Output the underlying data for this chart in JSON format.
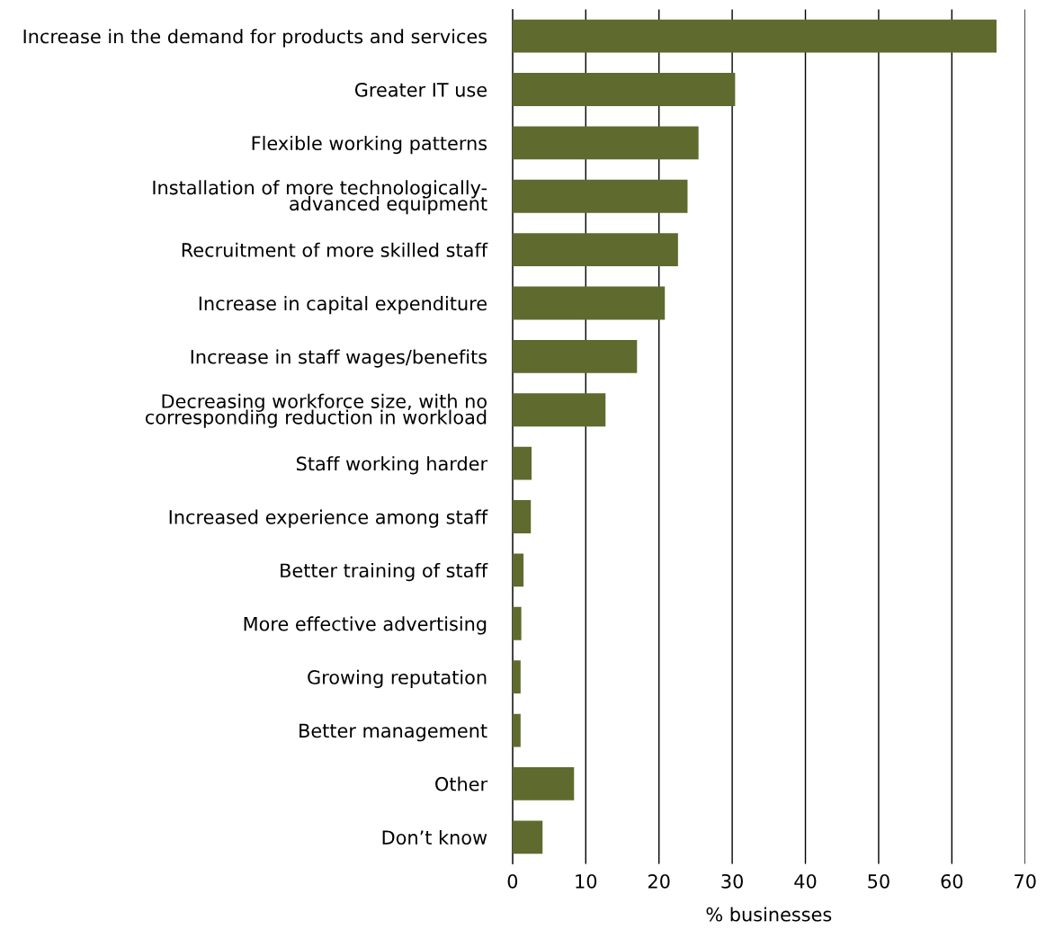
{
  "chart_data": {
    "type": "bar",
    "orientation": "horizontal",
    "xlabel": "% businesses",
    "categories": [
      "Increase in the demand for products and services",
      "Greater IT use",
      "Flexible working patterns",
      "Installation of more technologically-\nadvanced equipment",
      "Recruitment of more skilled staff",
      "Increase in capital expenditure",
      "Increase in staff wages/benefits",
      "Decreasing workforce size, with no\ncorresponding reduction in workload",
      "Staff working harder",
      "Increased experience among staff",
      "Better training of staff",
      "More effective advertising",
      "Growing reputation",
      "Better management",
      "Other",
      "Don’t know"
    ],
    "values": [
      66.1,
      30.4,
      25.4,
      23.9,
      22.6,
      20.8,
      17.0,
      12.7,
      2.6,
      2.5,
      1.5,
      1.2,
      1.1,
      1.1,
      8.4,
      4.1
    ],
    "color": "#5f6a2f",
    "xlim": [
      0,
      70
    ],
    "xticks": [
      0,
      10,
      20,
      30,
      40,
      50,
      60,
      70
    ],
    "grid": "x",
    "legend": false
  }
}
